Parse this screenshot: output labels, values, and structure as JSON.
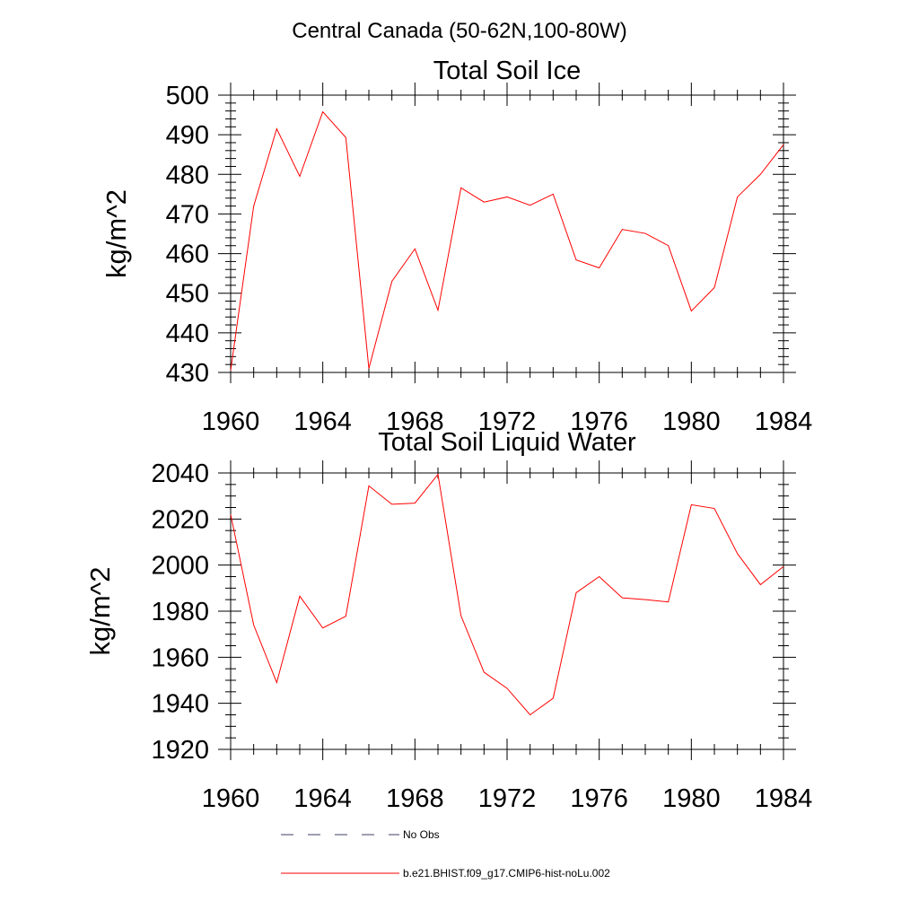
{
  "figure": {
    "suptitle": "Central Canada (50-62N,100-80W)"
  },
  "chart_data": [
    {
      "type": "line",
      "title": "Total Soil Ice",
      "xlabel": "",
      "ylabel": "kg/m^2",
      "xlim": [
        1960,
        1984
      ],
      "ylim": [
        430,
        500
      ],
      "x_ticks": [
        1960,
        1964,
        1968,
        1972,
        1976,
        1980,
        1984
      ],
      "y_ticks": [
        430,
        440,
        450,
        460,
        470,
        480,
        490,
        500
      ],
      "x": [
        1960,
        1961,
        1962,
        1963,
        1964,
        1965,
        1966,
        1967,
        1968,
        1969,
        1970,
        1971,
        1972,
        1973,
        1974,
        1975,
        1976,
        1977,
        1978,
        1979,
        1980,
        1981,
        1982,
        1983,
        1984
      ],
      "series": [
        {
          "name": "b.e21.BHIST.f09_g17.CMIP6-hist-noLu.002",
          "color": "#ff0000",
          "values": [
            430.5,
            472,
            491.5,
            479.5,
            495.8,
            489.3,
            431,
            453,
            461.2,
            445.7,
            476.6,
            473,
            474.3,
            472.2,
            475,
            458.4,
            456.4,
            466.1,
            465.1,
            462,
            445.5,
            451.4,
            474.3,
            480,
            487.5
          ]
        }
      ]
    },
    {
      "type": "line",
      "title": "Total Soil Liquid Water",
      "xlabel": "",
      "ylabel": "kg/m^2",
      "xlim": [
        1960,
        1984
      ],
      "ylim": [
        1920,
        2040
      ],
      "x_ticks": [
        1960,
        1964,
        1968,
        1972,
        1976,
        1980,
        1984
      ],
      "y_ticks": [
        1920,
        1940,
        1960,
        1980,
        2000,
        2020,
        2040
      ],
      "x": [
        1960,
        1961,
        1962,
        1963,
        1964,
        1965,
        1966,
        1967,
        1968,
        1969,
        1970,
        1971,
        1972,
        1973,
        1974,
        1975,
        1976,
        1977,
        1978,
        1979,
        1980,
        1981,
        1982,
        1983,
        1984
      ],
      "series": [
        {
          "name": "b.e21.BHIST.f09_g17.CMIP6-hist-noLu.002",
          "color": "#ff0000",
          "values": [
            2022,
            1974,
            1949,
            1986.5,
            1972.7,
            1977.8,
            2034.4,
            2026.4,
            2026.9,
            2039.4,
            1978,
            1953.5,
            1946.5,
            1935,
            1942.2,
            1988,
            1995,
            1985.8,
            1985,
            1984,
            2026.2,
            2024.6,
            2005,
            1991.5,
            1999.4
          ]
        }
      ]
    }
  ],
  "legend": {
    "items": [
      {
        "label": "No Obs",
        "color": "#3c3c66",
        "style": "dashed"
      },
      {
        "label": "b.e21.BHIST.f09_g17.CMIP6-hist-noLu.002",
        "color": "#ff0000",
        "style": "solid"
      }
    ]
  }
}
